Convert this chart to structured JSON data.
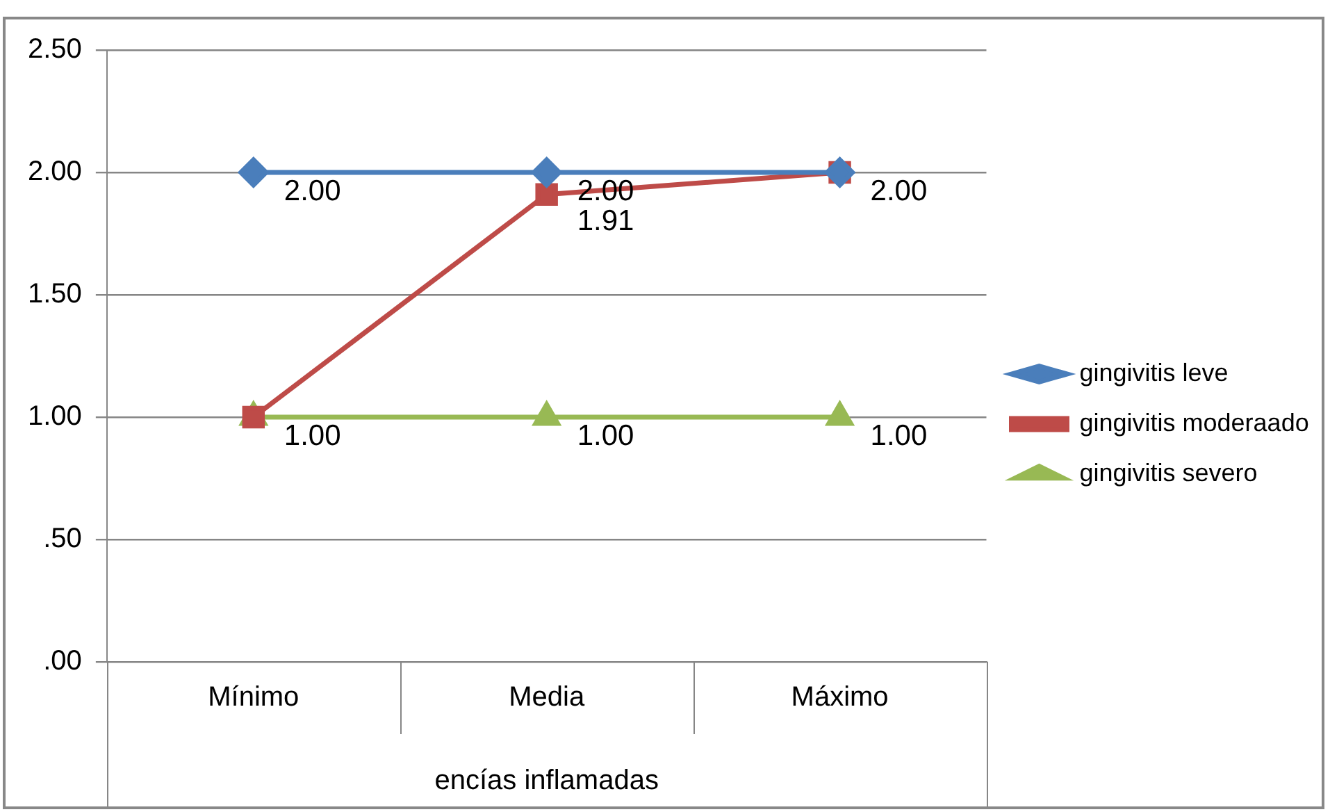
{
  "chart_data": {
    "type": "line",
    "categories": [
      "Mínimo",
      "Media",
      "Máximo"
    ],
    "xlabel": "encías inflamadas",
    "series": [
      {
        "name": "gingivitis leve",
        "color": "#4a7ebb",
        "marker": "diamond",
        "values": [
          2,
          2,
          2
        ],
        "value_labels": [
          "2.00",
          "2.00",
          null
        ]
      },
      {
        "name": "gingivitis moderaado",
        "color": "#be4b48",
        "marker": "square",
        "values": [
          1,
          1.91,
          2
        ],
        "value_labels": [
          null,
          "1.91",
          "2.00"
        ]
      },
      {
        "name": "gingivitis severo",
        "color": "#98b954",
        "marker": "triangle",
        "values": [
          1,
          1,
          1
        ],
        "value_labels": [
          "1.00",
          "1.00",
          "1.00"
        ]
      }
    ],
    "ylim": [
      0,
      2.5
    ],
    "yticks": [
      {
        "value": 0,
        "label": ".00"
      },
      {
        "value": 0.5,
        "label": ".50"
      },
      {
        "value": 1,
        "label": "1.00"
      },
      {
        "value": 1.5,
        "label": "1.50"
      },
      {
        "value": 2,
        "label": "2.00"
      },
      {
        "value": 2.5,
        "label": "2.50"
      }
    ],
    "grid": "y",
    "legend": "right",
    "line_style": "solid"
  }
}
